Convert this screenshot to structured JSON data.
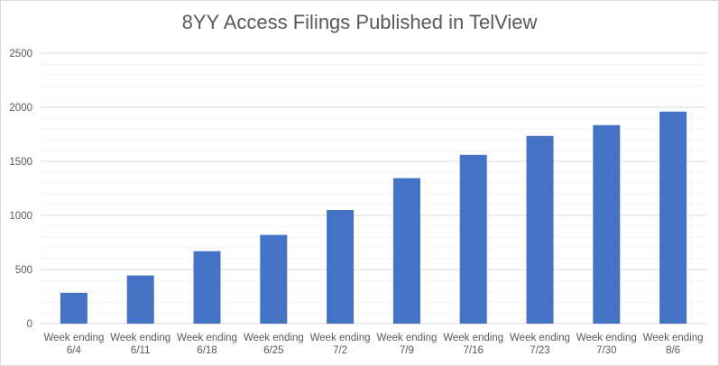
{
  "chart_data": {
    "type": "bar",
    "title": "8YY Access Filings Published in TelView",
    "xlabel": "",
    "ylabel": "",
    "ylim": [
      0,
      2500
    ],
    "yticks": [
      0,
      500,
      1000,
      1500,
      2000,
      2500
    ],
    "grid": true,
    "legend": "none",
    "bar_color": "#4472c4",
    "categories": [
      [
        "Week ending",
        "6/4"
      ],
      [
        "Week ending",
        "6/11"
      ],
      [
        "Week ending",
        "6/18"
      ],
      [
        "Week ending",
        "6/25"
      ],
      [
        "Week ending",
        "7/2"
      ],
      [
        "Week ending",
        "7/9"
      ],
      [
        "Week ending",
        "7/16"
      ],
      [
        "Week ending",
        "7/23"
      ],
      [
        "Week ending",
        "7/30"
      ],
      [
        "Week ending",
        "8/6"
      ]
    ],
    "values": [
      285,
      445,
      670,
      820,
      1050,
      1345,
      1560,
      1735,
      1835,
      1960
    ]
  }
}
